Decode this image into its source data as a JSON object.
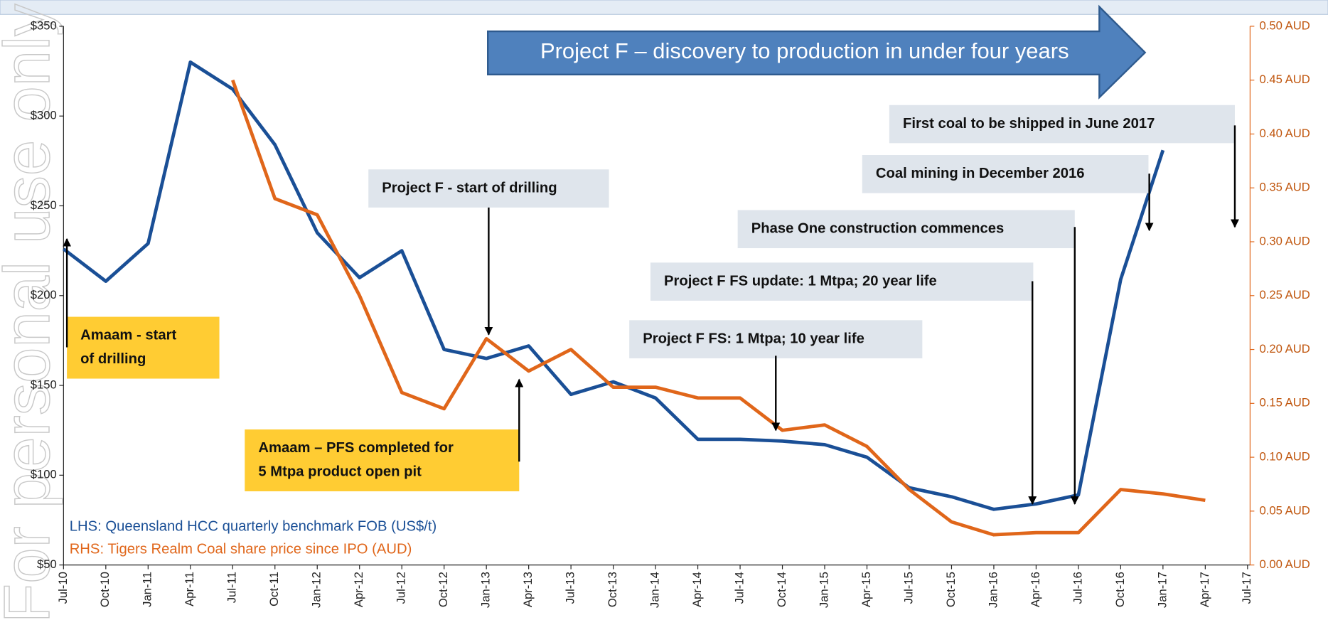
{
  "chart_data": {
    "type": "line",
    "watermark": "For personal use only",
    "banner": "Project F – discovery to production in under four years",
    "categories": [
      "Jul-10",
      "Oct-10",
      "Jan-11",
      "Apr-11",
      "Jul-11",
      "Oct-11",
      "Jan-12",
      "Apr-12",
      "Jul-12",
      "Oct-12",
      "Jan-13",
      "Apr-13",
      "Jul-13",
      "Oct-13",
      "Jan-14",
      "Apr-14",
      "Jul-14",
      "Oct-14",
      "Jan-15",
      "Apr-15",
      "Jul-15",
      "Oct-15",
      "Jan-16",
      "Apr-16",
      "Jul-16",
      "Oct-16",
      "Jan-17",
      "Apr-17",
      "Jul-17"
    ],
    "series": [
      {
        "name": "LHS: Queensland HCC quarterly benchmark FOB (US$/t)",
        "color": "#1a4f96",
        "values": [
          226,
          208,
          229,
          330,
          315,
          284,
          235,
          210,
          225,
          170,
          165,
          172,
          145,
          152,
          143,
          120,
          120,
          119,
          117,
          110,
          93,
          88,
          81,
          84,
          89,
          209,
          281,
          null,
          null
        ]
      },
      {
        "name": "RHS: Tigers Realm Coal share price since IPO (AUD)",
        "color": "#e0661a",
        "axis": "y2",
        "values": [
          null,
          null,
          null,
          null,
          0.45,
          0.34,
          0.325,
          0.25,
          0.16,
          0.145,
          0.21,
          0.18,
          0.2,
          0.165,
          0.165,
          0.155,
          0.155,
          0.125,
          0.13,
          0.11,
          0.07,
          0.04,
          0.028,
          0.03,
          0.03,
          0.07,
          0.066,
          0.06,
          null
        ]
      }
    ],
    "ylim": [
      50,
      350
    ],
    "yticks": [
      {
        "value": 50,
        "label": "$50"
      },
      {
        "value": 100,
        "label": "$100"
      },
      {
        "value": 150,
        "label": "$150"
      },
      {
        "value": 200,
        "label": "$200"
      },
      {
        "value": 250,
        "label": "$250"
      },
      {
        "value": 300,
        "label": "$300"
      },
      {
        "value": 350,
        "label": "$350"
      }
    ],
    "y2lim": [
      0,
      0.5
    ],
    "y2ticks": [
      {
        "value": 0,
        "label": "0.00 AUD"
      },
      {
        "value": 0.05,
        "label": "0.05 AUD"
      },
      {
        "value": 0.1,
        "label": "0.10 AUD"
      },
      {
        "value": 0.15,
        "label": "0.15 AUD"
      },
      {
        "value": 0.2,
        "label": "0.20 AUD"
      },
      {
        "value": 0.25,
        "label": "0.25 AUD"
      },
      {
        "value": 0.3,
        "label": "0.30 AUD"
      },
      {
        "value": 0.35,
        "label": "0.35 AUD"
      },
      {
        "value": 0.4,
        "label": "0.40 AUD"
      },
      {
        "value": 0.45,
        "label": "0.45 AUD"
      },
      {
        "value": 0.5,
        "label": "0.50 AUD"
      }
    ],
    "annotations": [
      {
        "lines": [
          "Amaam -  start",
          "of drilling"
        ]
      },
      {
        "lines": [
          "Project F - start of drilling"
        ]
      },
      {
        "lines": [
          "Amaam – PFS completed for",
          "5 Mtpa product open pit"
        ]
      },
      {
        "lines": [
          "Project F FS: 1 Mtpa; 10 year life"
        ]
      },
      {
        "lines": [
          "Project F FS update: 1 Mtpa; 20 year life"
        ]
      },
      {
        "lines": [
          "Phase One construction commences"
        ]
      },
      {
        "lines": [
          "Coal mining in December 2016"
        ]
      },
      {
        "lines": [
          "First coal to be shipped in June 2017"
        ]
      }
    ]
  }
}
